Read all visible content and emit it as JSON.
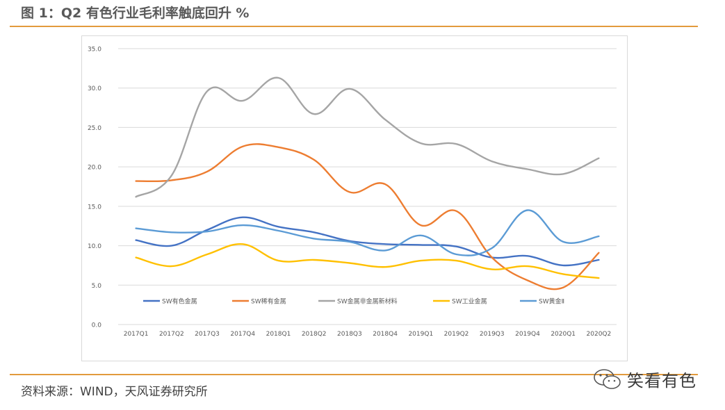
{
  "title": "图 1：Q2 有色行业毛利率触底回升 %",
  "source": "资料来源：WIND，天风证券研究所",
  "watermark": {
    "text": "笑看有色",
    "icon": "wechat-icon"
  },
  "colors": {
    "rule": "#e29a3c"
  },
  "chart_data": {
    "type": "line",
    "categories": [
      "2017Q1",
      "2017Q2",
      "2017Q3",
      "2017Q4",
      "2018Q1",
      "2018Q2",
      "2018Q3",
      "2018Q4",
      "2019Q1",
      "2019Q2",
      "2019Q3",
      "2019Q4",
      "2020Q1",
      "2020Q2"
    ],
    "y_ticks": [
      "0.0",
      "5.0",
      "10.0",
      "15.0",
      "20.0",
      "25.0",
      "30.0",
      "35.0"
    ],
    "ylim": [
      0,
      35
    ],
    "grid": true,
    "legend_position": "bottom",
    "series": [
      {
        "name": "SW有色金属",
        "color": "#4472c4",
        "values": [
          10.7,
          10.0,
          12.0,
          13.6,
          12.4,
          11.7,
          10.6,
          10.2,
          10.1,
          9.9,
          8.5,
          8.7,
          7.5,
          8.2
        ]
      },
      {
        "name": "SW稀有金属",
        "color": "#ed7d31",
        "values": [
          18.2,
          18.3,
          19.4,
          22.6,
          22.5,
          20.9,
          16.8,
          17.8,
          12.6,
          14.4,
          8.5,
          5.6,
          4.7,
          9.1
        ]
      },
      {
        "name": "SW金属非金属新材料",
        "color": "#a5a5a5",
        "values": [
          16.2,
          18.9,
          29.6,
          28.4,
          31.3,
          26.7,
          29.9,
          26.0,
          23.0,
          22.9,
          20.7,
          19.7,
          19.1,
          21.1
        ]
      },
      {
        "name": "SW工业金属",
        "color": "#ffc000",
        "values": [
          8.5,
          7.4,
          8.9,
          10.2,
          8.1,
          8.2,
          7.8,
          7.3,
          8.1,
          8.1,
          7.0,
          7.4,
          6.4,
          5.9
        ]
      },
      {
        "name": "SW黄金Ⅱ",
        "color": "#5b9bd5",
        "values": [
          12.2,
          11.7,
          11.8,
          12.6,
          11.9,
          10.9,
          10.5,
          9.4,
          11.3,
          8.9,
          9.7,
          14.5,
          10.5,
          11.2
        ]
      }
    ]
  }
}
